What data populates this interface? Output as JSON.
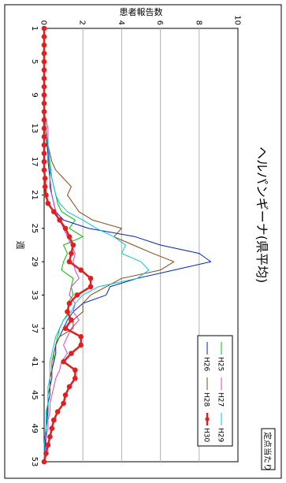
{
  "chart_data": {
    "type": "line",
    "title": "ヘルパンギーナ(県平均)",
    "subtitle": "定点当たり",
    "xlabel": "週",
    "ylabel": "患者報告数",
    "x_tick_labels": [
      "1",
      "5",
      "9",
      "13",
      "17",
      "21",
      "25",
      "29",
      "33",
      "37",
      "41",
      "45",
      "49",
      "53"
    ],
    "y_tick_labels": [
      "0",
      "2",
      "4",
      "6",
      "8",
      "10"
    ],
    "xlim": [
      1,
      53
    ],
    "ylim": [
      0,
      10
    ],
    "grid": true,
    "legend_position": "top-right",
    "x": [
      1,
      2,
      3,
      4,
      5,
      6,
      7,
      8,
      9,
      10,
      11,
      12,
      13,
      14,
      15,
      16,
      17,
      18,
      19,
      20,
      21,
      22,
      23,
      24,
      25,
      26,
      27,
      28,
      29,
      30,
      31,
      32,
      33,
      34,
      35,
      36,
      37,
      38,
      39,
      40,
      41,
      42,
      43,
      44,
      45,
      46,
      47,
      48,
      49,
      50,
      51,
      52,
      53
    ],
    "series": [
      {
        "name": "H25",
        "color": "#00c000",
        "marker": false,
        "width": 1,
        "values": [
          0,
          0,
          0,
          0,
          0,
          0,
          0,
          0,
          0,
          0,
          0,
          0.05,
          0.1,
          0.1,
          0.15,
          0.2,
          0.25,
          0.3,
          0.4,
          0.5,
          0.6,
          0.7,
          0.9,
          1.6,
          1.3,
          2.0,
          1.0,
          1.2,
          1.0,
          0.9,
          1.5,
          1.4,
          1.5,
          1.2,
          1.3,
          1.0,
          0.8,
          0.7,
          0.6,
          0.5,
          0.5,
          0.4,
          0.3,
          0.3,
          0.2,
          0.2,
          0.1,
          0.1,
          0.1,
          0.05,
          0.05,
          0,
          0
        ]
      },
      {
        "name": "H26",
        "color": "#0020c8",
        "marker": false,
        "width": 1,
        "values": [
          0,
          0,
          0,
          0,
          0,
          0,
          0,
          0,
          0,
          0,
          0,
          0.05,
          0.1,
          0.1,
          0.15,
          0.2,
          0.2,
          0.25,
          0.3,
          0.3,
          0.4,
          0.5,
          0.6,
          1.0,
          2.3,
          4.7,
          6.0,
          8.0,
          8.6,
          6.7,
          4.8,
          3.4,
          3.2,
          2.0,
          1.5,
          1.2,
          1.0,
          0.8,
          0.6,
          0.6,
          0.5,
          0.4,
          0.4,
          0.3,
          0.3,
          0.2,
          0.2,
          0.15,
          0.1,
          0.1,
          0.05,
          0,
          0
        ]
      },
      {
        "name": "H27",
        "color": "#d040d0",
        "marker": false,
        "width": 1,
        "values": [
          0,
          0,
          0,
          0,
          0,
          0,
          0,
          0,
          0,
          0,
          0,
          0.1,
          0.2,
          0.2,
          0.2,
          0.25,
          0.3,
          0.3,
          0.3,
          0.35,
          0.4,
          0.5,
          0.6,
          0.8,
          1.0,
          1.2,
          1.4,
          1.6,
          1.5,
          1.6,
          1.8,
          1.4,
          1.3,
          1.6,
          1.5,
          1.8,
          1.4,
          1.2,
          1.0,
          1.2,
          0.9,
          0.8,
          0.6,
          0.5,
          0.4,
          0.3,
          0.3,
          0.2,
          0.2,
          0.1,
          0.1,
          0.05,
          0
        ]
      },
      {
        "name": "H28",
        "color": "#8b4513",
        "marker": false,
        "width": 1,
        "values": [
          0,
          0,
          0,
          0,
          0,
          0,
          0,
          0,
          0,
          0,
          0,
          0.05,
          0.1,
          0.1,
          0.2,
          0.3,
          0.4,
          0.6,
          1.0,
          1.4,
          1.2,
          1.5,
          1.8,
          2.5,
          4.0,
          3.6,
          4.6,
          5.6,
          6.7,
          6.0,
          4.0,
          3.2,
          2.4,
          2.0,
          2.0,
          1.5,
          1.5,
          0.8,
          0.6,
          0.5,
          0.4,
          0.4,
          0.3,
          0.3,
          0.2,
          0.2,
          0.15,
          0.1,
          0.1,
          0.05,
          0,
          0,
          0
        ]
      },
      {
        "name": "H29",
        "color": "#00c8d8",
        "marker": false,
        "width": 1,
        "values": [
          0,
          0,
          0,
          0,
          0,
          0,
          0,
          0,
          0,
          0,
          0,
          0.05,
          0.1,
          0.15,
          0.2,
          0.25,
          0.3,
          0.35,
          0.4,
          0.5,
          0.6,
          0.8,
          1.2,
          2.0,
          2.7,
          3.6,
          4.2,
          4.0,
          5.0,
          5.4,
          4.8,
          2.8,
          2.0,
          1.6,
          1.4,
          1.0,
          0.8,
          0.6,
          0.5,
          0.4,
          0.3,
          0.3,
          0.3,
          0.2,
          0.2,
          0.2,
          0.1,
          0.1,
          0.1,
          0.05,
          0,
          0,
          0
        ]
      },
      {
        "name": "H30",
        "color": "#e02020",
        "marker": true,
        "width": 2.5,
        "values": [
          0,
          0,
          0,
          0,
          0,
          0,
          0,
          0,
          0,
          0,
          0,
          0,
          0,
          0,
          0,
          0,
          0,
          0,
          0.05,
          0.05,
          0.1,
          0.2,
          0.5,
          0.8,
          1.1,
          1.3,
          1.5,
          1.4,
          1.3,
          1.9,
          2.4,
          2.4,
          1.7,
          1.3,
          1.2,
          1.4,
          1.1,
          1.9,
          1.9,
          1.4,
          1.0,
          1.6,
          1.6,
          1.3,
          1.1,
          1.0,
          0.7,
          0.5,
          0.4,
          0.3,
          0.2,
          0.1,
          0
        ]
      }
    ]
  }
}
